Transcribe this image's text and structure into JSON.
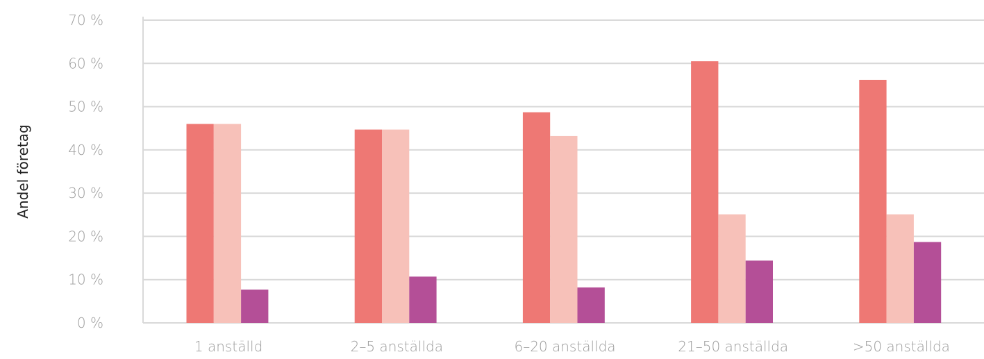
{
  "chart_data": {
    "type": "bar",
    "title": "",
    "xlabel": "",
    "ylabel": "Andel företag",
    "categories": [
      "1 anställd",
      "2–5 anställda",
      "6–20 anställda",
      "21–50 anställda",
      ">50 anställda"
    ],
    "series": [
      {
        "values": [
          46,
          44.7,
          48.7,
          60.5,
          56.2
        ],
        "color": "#ee7874"
      },
      {
        "values": [
          46,
          44.7,
          43.2,
          25.1,
          25.1
        ],
        "color": "#f7c1b9"
      },
      {
        "values": [
          7.7,
          10.7,
          8.2,
          14.4,
          18.7
        ],
        "color": "#b44f97"
      }
    ],
    "ylim": [
      0,
      70
    ],
    "yticks": [
      0,
      10,
      20,
      30,
      40,
      50,
      60,
      70
    ],
    "ytick_labels": [
      "0 %",
      "10 %",
      "20 %",
      "30 %",
      "40 %",
      "50 %",
      "60 %",
      "70 %"
    ],
    "grid": true,
    "legend": "none",
    "colors": {
      "grid": "#d9d9d9",
      "axis": "#d9d9d9",
      "tick_text": "#9b9b9b",
      "axis_title": "#222222"
    }
  }
}
